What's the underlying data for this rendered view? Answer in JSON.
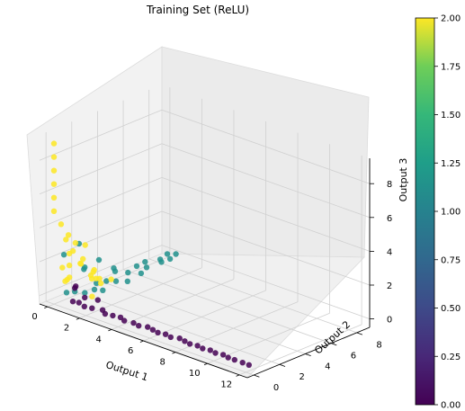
{
  "chart_data": {
    "type": "scatter",
    "projection": "3d",
    "title": "Training Set (ReLU)",
    "xlabel": "Output 1",
    "ylabel": "Output 2",
    "zlabel": "Output 3",
    "xlim": [
      -0.5,
      12.5
    ],
    "ylim": [
      -0.5,
      9
    ],
    "zlim": [
      -0.5,
      9.5
    ],
    "x_ticks": [
      "0",
      "2",
      "4",
      "6",
      "8",
      "10",
      "12"
    ],
    "y_ticks": [
      "0",
      "2",
      "4",
      "6",
      "8"
    ],
    "z_ticks": [
      "0",
      "2",
      "4",
      "6",
      "8"
    ],
    "grid": true,
    "colormap": "viridis",
    "colorbar": {
      "range": [
        0.0,
        2.0
      ],
      "ticks": [
        "0.00",
        "0.25",
        "0.50",
        "0.75",
        "1.00",
        "1.25",
        "1.50",
        "1.75",
        "2.00"
      ]
    },
    "series": [
      {
        "class_value": 0,
        "color": "#440154",
        "description_points": "points along Output 1 axis, Output 2 and Output 3 near 0",
        "x": [
          1.1,
          1.4,
          1.9,
          2.3,
          2.8,
          3.2,
          3.6,
          4.0,
          4.4,
          4.9,
          5.3,
          5.7,
          6.1,
          6.5,
          6.9,
          7.3,
          7.7,
          8.1,
          8.5,
          8.9,
          9.3,
          9.7,
          10.1,
          10.5,
          10.9,
          11.3,
          11.8,
          12.2,
          0.9,
          1.6,
          2.1,
          1.2
        ],
        "y": [
          0.1,
          0.2,
          0.0,
          0.1,
          0.3,
          0.0,
          0.1,
          0.2,
          0.0,
          0.1,
          0.0,
          0.2,
          0.1,
          0.0,
          0.1,
          0.0,
          0.2,
          0.1,
          0.0,
          0.1,
          0.0,
          0.1,
          0.0,
          0.1,
          0.0,
          0.0,
          0.0,
          0.0,
          0.5,
          0.4,
          0.8,
          0.2
        ],
        "z": [
          0.0,
          0.0,
          0.0,
          0.0,
          0.0,
          0.0,
          0.0,
          0.0,
          0.0,
          0.0,
          0.0,
          0.0,
          0.0,
          0.0,
          0.0,
          0.0,
          0.0,
          0.0,
          0.0,
          0.0,
          0.0,
          0.0,
          0.0,
          0.0,
          0.0,
          0.0,
          0.0,
          0.0,
          0.6,
          0.3,
          0.2,
          0.9
        ]
      },
      {
        "class_value": 1,
        "color": "#21918c",
        "x": [
          0.3,
          0.5,
          0.8,
          1.0,
          1.2,
          0.4,
          0.7,
          0.9,
          1.3,
          0.2,
          0.6,
          1.1,
          0.5,
          0.8,
          0.3,
          1.0,
          0.6,
          0.9,
          0.4,
          0.7,
          1.2,
          0.5,
          0.8,
          1.0,
          0.3,
          0.6
        ],
        "y": [
          0.6,
          1.0,
          1.4,
          1.9,
          2.3,
          2.8,
          3.2,
          3.7,
          4.1,
          4.5,
          5.0,
          5.4,
          5.8,
          6.2,
          6.7,
          7.1,
          7.5,
          7.9,
          8.3,
          8.6,
          0.9,
          1.7,
          2.5,
          3.4,
          0.4,
          1.2
        ],
        "z": [
          0.1,
          0.1,
          0.0,
          0.1,
          0.0,
          0.0,
          0.1,
          0.0,
          0.0,
          0.1,
          0.0,
          0.0,
          0.1,
          0.0,
          0.0,
          0.1,
          0.0,
          0.0,
          0.0,
          0.0,
          1.8,
          1.2,
          1.6,
          0.9,
          2.4,
          2.9
        ]
      },
      {
        "class_value": 2,
        "color": "#fde725",
        "x": [
          0.0,
          0.0,
          0.0,
          0.0,
          0.0,
          0.0,
          0.2,
          0.5,
          0.1,
          0.8,
          0.3,
          1.2,
          0.6,
          0.2,
          1.5,
          0.9,
          0.4,
          1.8,
          0.1,
          0.7,
          1.1,
          2.2,
          0.5,
          0.3,
          1.4,
          0.8,
          0.2,
          1.9,
          0.6,
          1.0
        ],
        "y": [
          0.0,
          0.0,
          0.0,
          0.0,
          0.0,
          0.0,
          0.3,
          0.5,
          0.8,
          0.2,
          1.1,
          0.6,
          1.5,
          0.4,
          1.0,
          2.0,
          0.7,
          1.4,
          0.9,
          2.4,
          0.3,
          0.8,
          1.8,
          0.5,
          1.2,
          0.2,
          2.8,
          0.6,
          1.3,
          3.2
        ],
        "z": [
          9.0,
          8.2,
          7.4,
          6.6,
          5.8,
          5.0,
          4.2,
          3.6,
          3.1,
          2.7,
          2.4,
          2.1,
          1.9,
          1.6,
          1.4,
          1.2,
          1.0,
          0.9,
          0.7,
          0.5,
          3.4,
          1.5,
          2.6,
          0.8,
          1.1,
          2.0,
          0.6,
          0.4,
          1.7,
          0.3
        ]
      }
    ]
  }
}
